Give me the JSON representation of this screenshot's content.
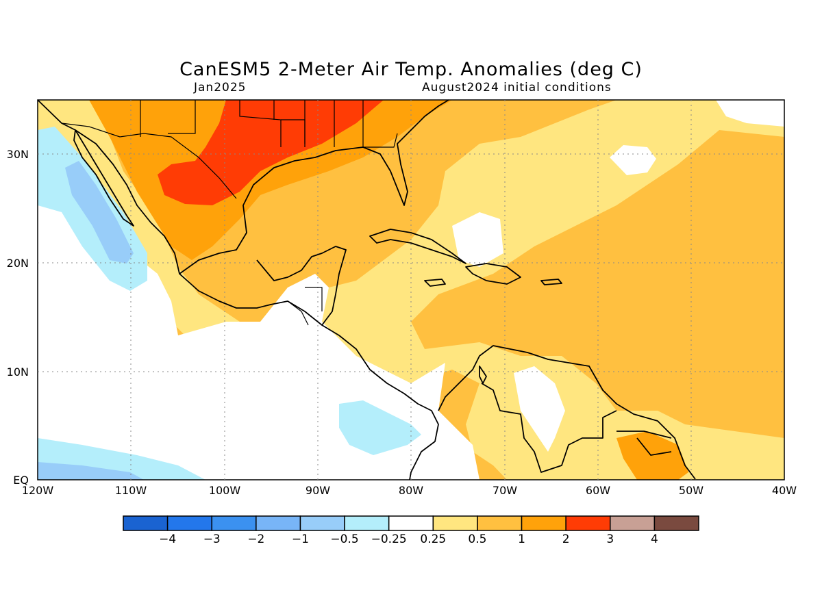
{
  "header": {
    "title": "CanESM5 2-Meter Air Temp. Anomalies (deg C)",
    "left_subtitle": "Jan2025",
    "right_subtitle": "August2024 initial conditions"
  },
  "map": {
    "lon_labels": [
      "120W",
      "110W",
      "100W",
      "90W",
      "80W",
      "70W",
      "60W",
      "50W",
      "40W"
    ],
    "lat_labels": [
      "30N",
      "20N",
      "10N",
      "EQ"
    ]
  },
  "colorbar": {
    "labels": [
      "-4",
      "-3",
      "-2",
      "-1",
      "-0.5",
      "-0.25",
      "0.25",
      "0.5",
      "1",
      "2",
      "3",
      "4"
    ],
    "colors": [
      "#1a63d1",
      "#2377eb",
      "#3b91f0",
      "#78b5f7",
      "#98cdf9",
      "#b4eefb",
      "#ffffff",
      "#ffe680",
      "#ffc040",
      "#ffa20a",
      "#ff3c05",
      "#c8a095",
      "#7a4a3f"
    ]
  }
}
